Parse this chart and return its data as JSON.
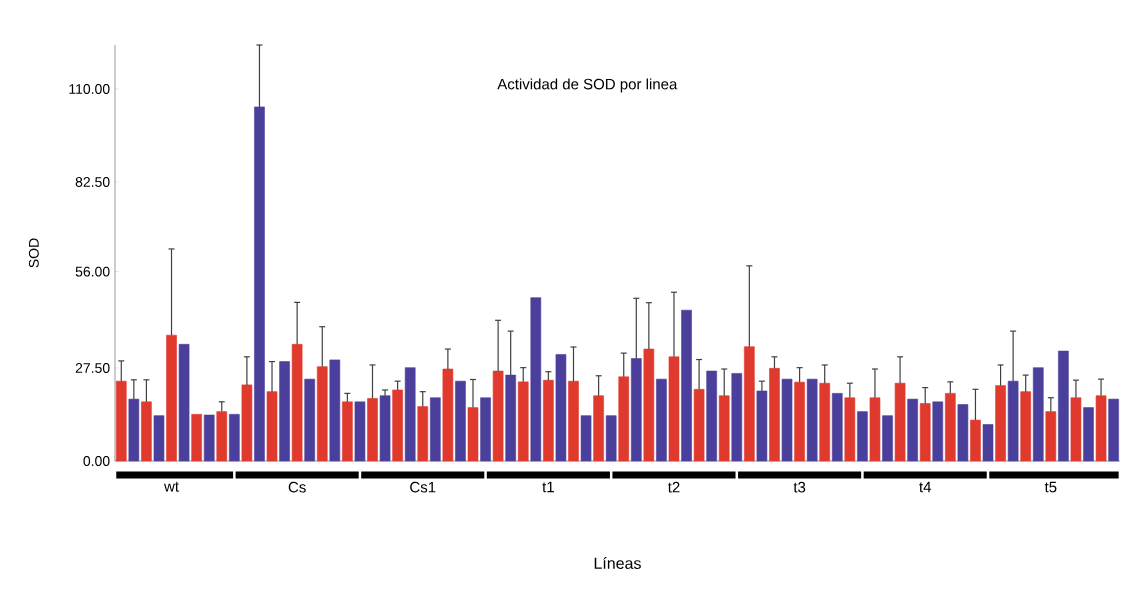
{
  "chart_data": {
    "type": "bar",
    "title": "Actividad de SOD por linea",
    "xlabel": "Líneas",
    "ylabel": "SOD",
    "categories": [
      null,
      null,
      null,
      null,
      "wt",
      null,
      null,
      null,
      null,
      null,
      null,
      null,
      null,
      null,
      "Cs",
      null,
      null,
      null,
      null,
      null,
      null,
      null,
      null,
      null,
      "Cs1",
      null,
      null,
      null,
      null,
      null,
      null,
      null,
      null,
      null,
      "t1",
      null,
      null,
      null,
      null,
      null,
      null,
      null,
      null,
      null,
      "t2",
      null,
      null,
      null,
      null,
      null,
      null,
      null,
      null,
      null,
      "t3",
      null,
      null,
      null,
      null,
      null,
      null,
      null,
      null,
      null,
      "t4",
      null,
      null,
      null,
      null,
      null,
      null,
      null,
      null,
      null,
      "t5",
      null,
      null,
      null,
      null,
      null
    ],
    "values": [
      23.6,
      18.3,
      17.5,
      13.4,
      37.2,
      34.5,
      13.8,
      13.6,
      14.6,
      13.8,
      22.5,
      104.7,
      20.5,
      29.4,
      34.5,
      24.2,
      27.9,
      29.9,
      17.5,
      17.5,
      18.5,
      19.3,
      21.0,
      27.6,
      16.1,
      18.7,
      27.2,
      23.6,
      15.8,
      18.7,
      26.6,
      25.4,
      23.4,
      48.3,
      23.9,
      31.5,
      23.6,
      13.4,
      19.3,
      13.4,
      24.9,
      30.3,
      33.1,
      24.2,
      30.8,
      44.6,
      21.2,
      26.6,
      19.3,
      25.9,
      33.8,
      20.7,
      27.4,
      24.2,
      23.3,
      24.2,
      23.0,
      20.0,
      18.7,
      14.6,
      18.7,
      13.4,
      23.0,
      18.3,
      17.0,
      17.5,
      20.0,
      16.7,
      12.1,
      10.8,
      22.3,
      23.6,
      20.5,
      27.6,
      14.6,
      32.5,
      18.7,
      15.8,
      19.3,
      18.3
    ],
    "errors": [
      [
        23.6,
        29.6
      ],
      [
        18.3,
        24.0
      ],
      [
        17.5,
        24.0
      ],
      null,
      [
        37.2,
        62.7
      ],
      null,
      null,
      null,
      [
        14.6,
        17.5
      ],
      null,
      [
        22.5,
        30.8
      ],
      [
        104.7,
        123
      ],
      [
        20.5,
        29.4
      ],
      null,
      [
        34.5,
        46.9
      ],
      null,
      [
        27.9,
        39.7
      ],
      null,
      [
        17.5,
        20.0
      ],
      null,
      [
        18.5,
        28.4
      ],
      [
        19.3,
        21.0
      ],
      [
        21.0,
        23.6
      ],
      null,
      [
        16.1,
        20.5
      ],
      null,
      [
        27.2,
        33.1
      ],
      null,
      [
        15.8,
        24.1
      ],
      null,
      [
        26.6,
        41.6
      ],
      [
        25.4,
        38.4
      ],
      [
        23.4,
        27.6
      ],
      null,
      [
        23.9,
        26.4
      ],
      null,
      [
        23.6,
        33.7
      ],
      null,
      [
        19.3,
        25.2
      ],
      null,
      [
        24.9,
        31.9
      ],
      [
        30.3,
        48.1
      ],
      [
        33.1,
        46.8
      ],
      null,
      [
        30.8,
        49.9
      ],
      null,
      [
        21.2,
        30.0
      ],
      null,
      [
        19.3,
        27.2
      ],
      null,
      [
        33.8,
        57.7
      ],
      [
        20.7,
        23.6
      ],
      [
        27.4,
        30.8
      ],
      null,
      [
        23.3,
        27.6
      ],
      null,
      [
        23.0,
        28.4
      ],
      null,
      [
        18.7,
        23.0
      ],
      null,
      [
        18.7,
        27.2
      ],
      null,
      [
        23.0,
        30.8
      ],
      null,
      [
        17.0,
        21.7
      ],
      null,
      [
        20.0,
        23.4
      ],
      null,
      [
        12.1,
        21.2
      ],
      null,
      [
        22.3,
        28.4
      ],
      [
        23.6,
        38.4
      ],
      [
        20.5,
        25.4
      ],
      null,
      [
        14.6,
        18.7
      ],
      null,
      [
        18.7,
        23.9
      ],
      null,
      [
        19.3,
        24.2
      ],
      null
    ],
    "colors": [
      "#e03a2e",
      "#4b3f9c",
      "#e03a2e",
      "#4b3f9c",
      "#e03a2e",
      "#4b3f9c",
      "#e03a2e",
      "#4b3f9c",
      "#e03a2e",
      "#4b3f9c",
      "#e03a2e",
      "#4b3f9c",
      "#e03a2e",
      "#4b3f9c",
      "#e03a2e",
      "#4b3f9c",
      "#e03a2e",
      "#4b3f9c",
      "#e03a2e",
      "#4b3f9c",
      "#e03a2e",
      "#4b3f9c",
      "#e03a2e",
      "#4b3f9c",
      "#e03a2e",
      "#4b3f9c",
      "#e03a2e",
      "#4b3f9c",
      "#e03a2e",
      "#4b3f9c",
      "#e03a2e",
      "#4b3f9c",
      "#e03a2e",
      "#4b3f9c",
      "#e03a2e",
      "#4b3f9c",
      "#e03a2e",
      "#4b3f9c",
      "#e03a2e",
      "#4b3f9c",
      "#e03a2e",
      "#4b3f9c",
      "#e03a2e",
      "#4b3f9c",
      "#e03a2e",
      "#4b3f9c",
      "#e03a2e",
      "#4b3f9c",
      "#e03a2e",
      "#4b3f9c",
      "#e03a2e",
      "#4b3f9c",
      "#e03a2e",
      "#4b3f9c",
      "#e03a2e",
      "#4b3f9c",
      "#e03a2e",
      "#4b3f9c",
      "#e03a2e",
      "#4b3f9c",
      "#e03a2e",
      "#4b3f9c",
      "#e03a2e",
      "#4b3f9c",
      "#e03a2e",
      "#4b3f9c",
      "#e03a2e",
      "#4b3f9c",
      "#e03a2e",
      "#4b3f9c",
      "#e03a2e",
      "#4b3f9c",
      "#e03a2e",
      "#4b3f9c",
      "#e03a2e",
      "#4b3f9c",
      "#e03a2e",
      "#4b3f9c",
      "#e03a2e",
      "#4b3f9c"
    ],
    "ylim": [
      0,
      123
    ],
    "yticks": [
      {
        "value": 0,
        "label": "0.00"
      },
      {
        "value": 27.5,
        "label": "27.50"
      },
      {
        "value": 56,
        "label": "56.00"
      },
      {
        "value": 82.5,
        "label": "82.50"
      },
      {
        "value": 110,
        "label": "110.00"
      }
    ],
    "grid": false
  }
}
